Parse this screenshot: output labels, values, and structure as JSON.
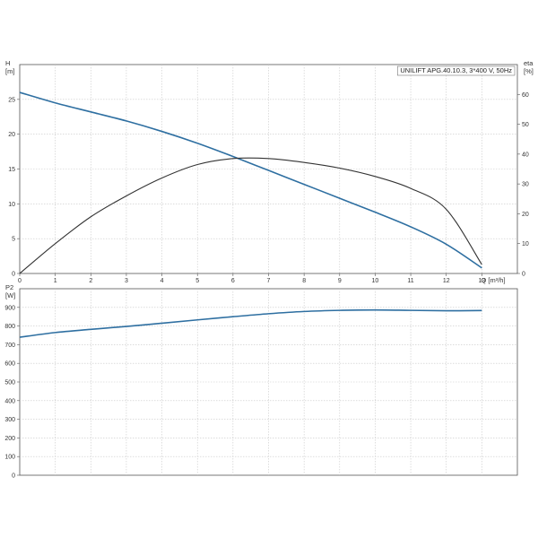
{
  "chart_data": [
    {
      "type": "line",
      "legend": "UNILIFT APG.40.10.3, 3*400 V, 50Hz",
      "legend_placement": "top-right",
      "grid": true,
      "x_label": "Q [m³/h]",
      "x_ticks": [
        "0",
        "1",
        "2",
        "3",
        "4",
        "5",
        "6",
        "7",
        "8",
        "9",
        "10",
        "11",
        "12",
        "13"
      ],
      "xlim": [
        0,
        14
      ],
      "left_axis": {
        "label_line1": "H",
        "label_line2": "[m]",
        "ticks": [
          "0",
          "5",
          "10",
          "15",
          "20",
          "25"
        ],
        "range": [
          0,
          30
        ]
      },
      "right_axis": {
        "label_line1": "eta",
        "label_line2": "[%]",
        "ticks": [
          "0",
          "10",
          "20",
          "30",
          "40",
          "50",
          "60"
        ],
        "range": [
          0,
          70
        ]
      },
      "series": [
        {
          "axis": "left",
          "color": "#2e6fa1",
          "x": [
            0,
            1,
            2,
            3,
            4,
            5,
            6,
            7,
            8,
            9,
            10,
            11,
            12,
            13
          ],
          "y": [
            26,
            24.5,
            23.2,
            21.9,
            20.4,
            18.7,
            16.8,
            14.8,
            12.8,
            10.8,
            8.8,
            6.7,
            4.2,
            0.8
          ]
        },
        {
          "axis": "right",
          "color": "#333333",
          "x": [
            0,
            1,
            2,
            3,
            4,
            5,
            6,
            7,
            8,
            9,
            10,
            11,
            12,
            13
          ],
          "y": [
            0,
            10,
            19,
            26,
            32,
            36.5,
            38.5,
            38.5,
            37.2,
            35.3,
            32.5,
            28.5,
            21.5,
            3
          ]
        }
      ]
    },
    {
      "type": "line",
      "grid": true,
      "xlim": [
        0,
        14
      ],
      "left_axis": {
        "label_line1": "P2",
        "label_line2": "[W]",
        "ticks": [
          "0",
          "100",
          "200",
          "300",
          "400",
          "500",
          "600",
          "700",
          "800",
          "900"
        ],
        "range": [
          0,
          1000
        ]
      },
      "series": [
        {
          "axis": "left",
          "color": "#2e6fa1",
          "x": [
            0,
            1,
            2,
            3,
            4,
            5,
            6,
            7,
            8,
            9,
            10,
            11,
            12,
            13
          ],
          "y": [
            740,
            765,
            782,
            798,
            815,
            833,
            850,
            866,
            878,
            884,
            886,
            884,
            882,
            883
          ]
        }
      ]
    }
  ]
}
